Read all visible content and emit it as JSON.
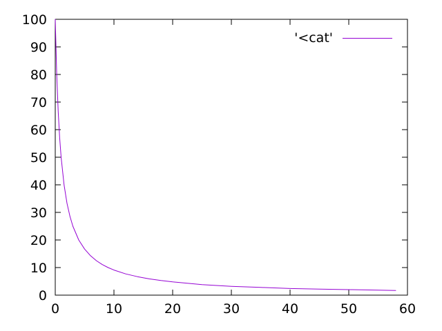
{
  "chart_data": {
    "type": "line",
    "title": "",
    "xlabel": "",
    "ylabel": "",
    "xlim": [
      0,
      60
    ],
    "ylim": [
      0,
      100
    ],
    "xticks": [
      0,
      10,
      20,
      30,
      40,
      50,
      60
    ],
    "yticks": [
      0,
      10,
      20,
      30,
      40,
      50,
      60,
      70,
      80,
      90,
      100
    ],
    "grid": false,
    "legend_position": "top-right-inside",
    "series": [
      {
        "name": "'<cat'",
        "color": "#9400d3",
        "x": [
          0,
          0.25,
          0.5,
          0.75,
          1,
          1.5,
          2,
          2.5,
          3,
          4,
          5,
          6,
          7,
          8,
          9,
          10,
          12,
          14,
          16,
          18,
          20,
          25,
          30,
          35,
          40,
          45,
          50,
          55,
          58
        ],
        "y": [
          100,
          80,
          66.7,
          57.1,
          50,
          40,
          33.3,
          28.6,
          25,
          20,
          16.7,
          14.3,
          12.5,
          11.1,
          10,
          9.1,
          7.7,
          6.7,
          5.9,
          5.3,
          4.8,
          3.8,
          3.2,
          2.8,
          2.4,
          2.2,
          2.0,
          1.8,
          1.7
        ]
      }
    ]
  },
  "colors": {
    "background": "#ffffff",
    "axis": "#000000",
    "text": "#000000",
    "line": "#9400d3"
  }
}
